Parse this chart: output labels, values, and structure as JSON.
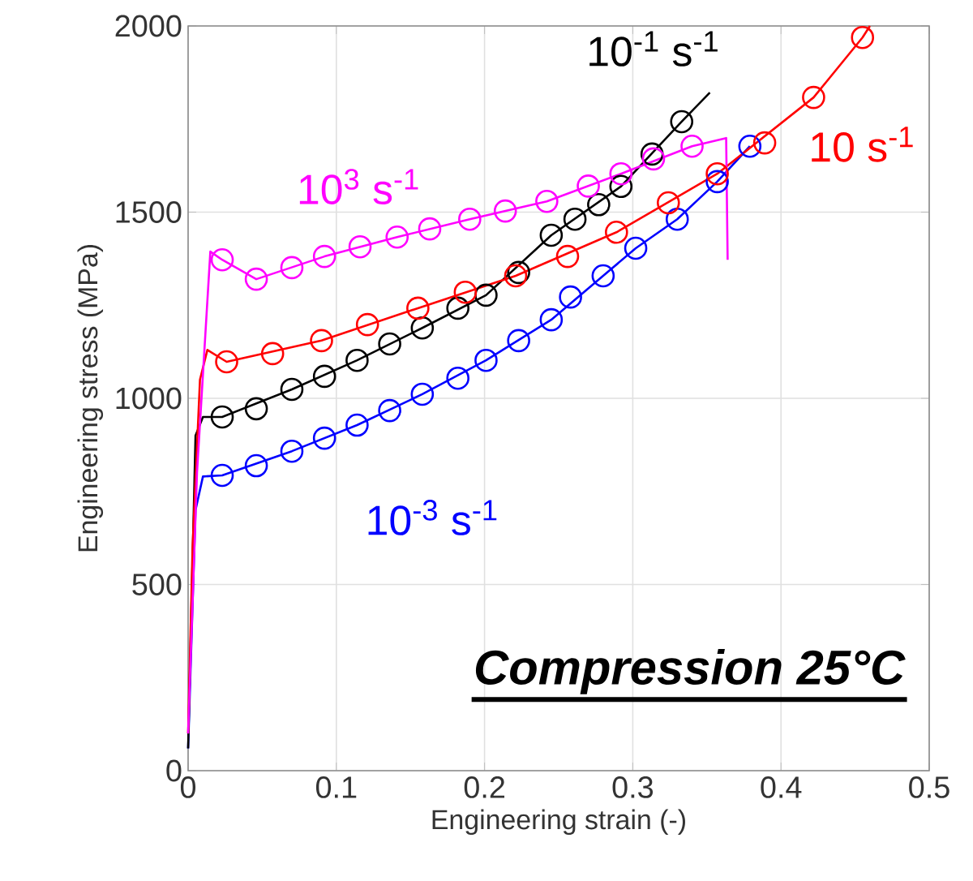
{
  "chart_data": {
    "type": "line",
    "xlabel": "Engineering strain (-)",
    "ylabel": "Engineering stress (MPa)",
    "xlim": [
      0,
      0.5
    ],
    "ylim": [
      0,
      2000
    ],
    "xticks": [
      0,
      0.1,
      0.2,
      0.3,
      0.4,
      0.5
    ],
    "yticks": [
      0,
      500,
      1000,
      1500,
      2000
    ],
    "grid": true,
    "marker": "none",
    "line_style": "solid",
    "series": [
      {
        "name": "10$^{-3}$ s$^{-1}$",
        "color": "#0000ff",
        "x": [
          0,
          0.005,
          0.01,
          0.023,
          0.07,
          0.114,
          0.158,
          0.201,
          0.245,
          0.28,
          0.302,
          0.33,
          0.357,
          0.379
        ],
        "values": [
          60,
          700,
          790,
          793,
          858,
          928,
          1011,
          1102,
          1211,
          1329,
          1403,
          1481,
          1582,
          1677
        ]
      },
      {
        "type": "scatter",
        "marker": "circle",
        "color": "#0000ff",
        "x": [
          0.023,
          0.046,
          0.07,
          0.092,
          0.114,
          0.136,
          0.158,
          0.182,
          0.201,
          0.223,
          0.245,
          0.258,
          0.28,
          0.302,
          0.33,
          0.357,
          0.379
        ],
        "values": [
          793,
          819,
          858,
          893,
          928,
          967,
          1011,
          1054,
          1102,
          1155,
          1211,
          1272,
          1329,
          1403,
          1481,
          1582,
          1677
        ]
      },
      {
        "name": "10$^{-1}$ s$^{-1}$",
        "color": "#000000",
        "x": [
          0,
          0.005,
          0.01,
          0.023,
          0.07,
          0.114,
          0.158,
          0.201,
          0.245,
          0.292,
          0.333,
          0.352
        ],
        "values": [
          60,
          900,
          950,
          950,
          1024,
          1102,
          1189,
          1277,
          1438,
          1569,
          1743,
          1821
        ]
      },
      {
        "type": "scatter",
        "marker": "circle",
        "color": "#000000",
        "x": [
          0.023,
          0.046,
          0.07,
          0.092,
          0.114,
          0.136,
          0.158,
          0.182,
          0.201,
          0.223,
          0.245,
          0.261,
          0.277,
          0.292,
          0.313,
          0.333
        ],
        "values": [
          950,
          972,
          1024,
          1059,
          1102,
          1146,
          1189,
          1242,
          1277,
          1338,
          1438,
          1481,
          1520,
          1569,
          1656,
          1743
        ]
      },
      {
        "name": "10 s$^{-1}$",
        "color": "#ff0000",
        "x": [
          0,
          0.003,
          0.008,
          0.013,
          0.026,
          0.09,
          0.155,
          0.221,
          0.289,
          0.357,
          0.422,
          0.455,
          0.46
        ],
        "values": [
          100,
          600,
          1050,
          1130,
          1098,
          1155,
          1242,
          1329,
          1446,
          1603,
          1808,
          1969,
          2000
        ]
      },
      {
        "type": "scatter",
        "marker": "circle",
        "color": "#ff0000",
        "x": [
          0.026,
          0.057,
          0.09,
          0.121,
          0.155,
          0.187,
          0.221,
          0.256,
          0.289,
          0.324,
          0.357,
          0.389,
          0.422,
          0.455
        ],
        "values": [
          1098,
          1120,
          1155,
          1198,
          1242,
          1285,
          1329,
          1381,
          1446,
          1525,
          1603,
          1686,
          1808,
          1969
        ]
      },
      {
        "name": "10$^{3}$ s$^{-1}$",
        "color": "#ff00ff",
        "x": [
          0,
          0.006,
          0.015,
          0.023,
          0.046,
          0.092,
          0.141,
          0.19,
          0.242,
          0.292,
          0.34,
          0.363,
          0.364
        ],
        "values": [
          100,
          800,
          1394,
          1372,
          1320,
          1381,
          1433,
          1481,
          1529,
          1603,
          1677,
          1699,
          1372
        ]
      },
      {
        "type": "scatter",
        "marker": "circle",
        "color": "#ff00ff",
        "x": [
          0.023,
          0.046,
          0.07,
          0.092,
          0.116,
          0.141,
          0.163,
          0.19,
          0.214,
          0.242,
          0.27,
          0.292,
          0.314,
          0.34
        ],
        "values": [
          1372,
          1320,
          1351,
          1381,
          1407,
          1433,
          1455,
          1481,
          1503,
          1529,
          1570,
          1603,
          1643,
          1677
        ]
      }
    ],
    "annotations": [
      "Compression 25°C"
    ]
  }
}
